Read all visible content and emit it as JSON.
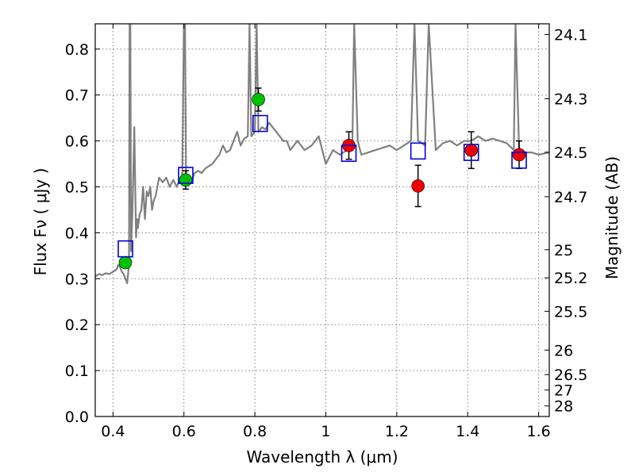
{
  "chart_data": {
    "type": "scatter",
    "xlabel": "Wavelength  λ (μm)",
    "ylabel": "Flux  Fν  ( μJy )",
    "ylabel_right": "Magnitude (AB)",
    "xlim": [
      0.35,
      1.63
    ],
    "ylim": [
      0.0,
      0.855
    ],
    "grid": true,
    "x_ticks": [
      {
        "value": 0.4,
        "label": "0.4"
      },
      {
        "value": 0.6,
        "label": "0.6"
      },
      {
        "value": 0.8,
        "label": "0.8"
      },
      {
        "value": 1.0,
        "label": "1"
      },
      {
        "value": 1.2,
        "label": "1.2"
      },
      {
        "value": 1.4,
        "label": "1.4"
      },
      {
        "value": 1.6,
        "label": "1.6"
      }
    ],
    "y_ticks": [
      {
        "value": 0.0,
        "label": "0.0"
      },
      {
        "value": 0.1,
        "label": "0.1"
      },
      {
        "value": 0.2,
        "label": "0.2"
      },
      {
        "value": 0.3,
        "label": "0.3"
      },
      {
        "value": 0.4,
        "label": "0.4"
      },
      {
        "value": 0.5,
        "label": "0.5"
      },
      {
        "value": 0.6,
        "label": "0.6"
      },
      {
        "value": 0.7,
        "label": "0.7"
      },
      {
        "value": 0.8,
        "label": "0.8"
      }
    ],
    "right_ticks": [
      {
        "value": 24.1,
        "label": "24.1"
      },
      {
        "value": 24.3,
        "label": "24.3"
      },
      {
        "value": 24.5,
        "label": "24.5"
      },
      {
        "value": 24.7,
        "label": "24.7"
      },
      {
        "value": 25.0,
        "label": "25"
      },
      {
        "value": 25.2,
        "label": "25.2"
      },
      {
        "value": 25.5,
        "label": "25.5"
      },
      {
        "value": 26.0,
        "label": "26"
      },
      {
        "value": 26.5,
        "label": "26.5"
      },
      {
        "value": 27.0,
        "label": "27"
      },
      {
        "value": 28.0,
        "label": "28"
      }
    ],
    "colors": {
      "spectrum": "#808080",
      "green": "#00c000",
      "red": "#ee0000",
      "model": "#0000dd",
      "errorbar": "#000000",
      "grid": "#808080"
    },
    "spectrum": {
      "x": [
        0.35,
        0.36,
        0.37,
        0.38,
        0.39,
        0.4,
        0.41,
        0.415,
        0.42,
        0.425,
        0.43,
        0.435,
        0.44,
        0.445,
        0.447,
        0.449,
        0.451,
        0.455,
        0.46,
        0.465,
        0.468,
        0.47,
        0.475,
        0.48,
        0.485,
        0.49,
        0.495,
        0.5,
        0.505,
        0.51,
        0.515,
        0.52,
        0.53,
        0.54,
        0.55,
        0.56,
        0.57,
        0.58,
        0.59,
        0.595,
        0.6,
        0.603,
        0.606,
        0.61,
        0.62,
        0.63,
        0.64,
        0.65,
        0.66,
        0.67,
        0.68,
        0.69,
        0.7,
        0.71,
        0.72,
        0.73,
        0.74,
        0.75,
        0.76,
        0.77,
        0.78,
        0.785,
        0.79,
        0.8,
        0.805,
        0.81,
        0.82,
        0.83,
        0.84,
        0.85,
        0.86,
        0.87,
        0.88,
        0.89,
        0.9,
        0.92,
        0.94,
        0.96,
        0.97,
        0.98,
        0.99,
        1.0,
        1.02,
        1.04,
        1.06,
        1.075,
        1.08,
        1.09,
        1.1,
        1.12,
        1.14,
        1.16,
        1.18,
        1.2,
        1.22,
        1.24,
        1.25,
        1.26,
        1.28,
        1.29,
        1.31,
        1.33,
        1.35,
        1.37,
        1.39,
        1.41,
        1.43,
        1.45,
        1.47,
        1.49,
        1.51,
        1.53,
        1.535,
        1.545,
        1.56,
        1.58,
        1.6,
        1.63
      ],
      "y": [
        0.305,
        0.31,
        0.308,
        0.312,
        0.31,
        0.315,
        0.32,
        0.33,
        0.325,
        0.315,
        0.31,
        0.3,
        0.29,
        0.33,
        0.855,
        0.855,
        0.36,
        0.45,
        0.63,
        0.39,
        0.43,
        0.41,
        0.44,
        0.45,
        0.5,
        0.43,
        0.49,
        0.48,
        0.5,
        0.45,
        0.47,
        0.48,
        0.52,
        0.51,
        0.52,
        0.5,
        0.515,
        0.5,
        0.52,
        0.51,
        0.855,
        0.855,
        0.52,
        0.505,
        0.51,
        0.53,
        0.535,
        0.53,
        0.54,
        0.545,
        0.55,
        0.56,
        0.57,
        0.59,
        0.575,
        0.58,
        0.6,
        0.62,
        0.59,
        0.605,
        0.61,
        0.855,
        0.61,
        0.62,
        0.855,
        0.62,
        0.63,
        0.625,
        0.64,
        0.63,
        0.62,
        0.61,
        0.6,
        0.6,
        0.58,
        0.6,
        0.58,
        0.59,
        0.6,
        0.61,
        0.58,
        0.55,
        0.58,
        0.57,
        0.58,
        0.6,
        0.855,
        0.6,
        0.57,
        0.575,
        0.58,
        0.585,
        0.59,
        0.58,
        0.59,
        0.6,
        0.855,
        0.6,
        0.59,
        0.855,
        0.58,
        0.595,
        0.6,
        0.59,
        0.6,
        0.6,
        0.61,
        0.6,
        0.605,
        0.6,
        0.595,
        0.58,
        0.855,
        0.58,
        0.575,
        0.575,
        0.57,
        0.575
      ]
    },
    "series": [
      {
        "marker": "circle",
        "color": "green",
        "x": [
          0.435,
          0.605,
          0.81
        ],
        "y": [
          0.335,
          0.515,
          0.69
        ],
        "err": [
          0.0,
          0.02,
          0.025
        ]
      },
      {
        "marker": "circle",
        "color": "red",
        "x": [
          1.065,
          1.26,
          1.41,
          1.545
        ],
        "y": [
          0.59,
          0.502,
          0.58,
          0.57
        ],
        "err": [
          0.03,
          0.045,
          0.04,
          0.03
        ]
      },
      {
        "marker": "square-open",
        "color": "model",
        "x": [
          0.435,
          0.605,
          0.815,
          1.065,
          1.26,
          1.41,
          1.545
        ],
        "y": [
          0.365,
          0.525,
          0.638,
          0.573,
          0.578,
          0.575,
          0.558
        ]
      }
    ]
  }
}
